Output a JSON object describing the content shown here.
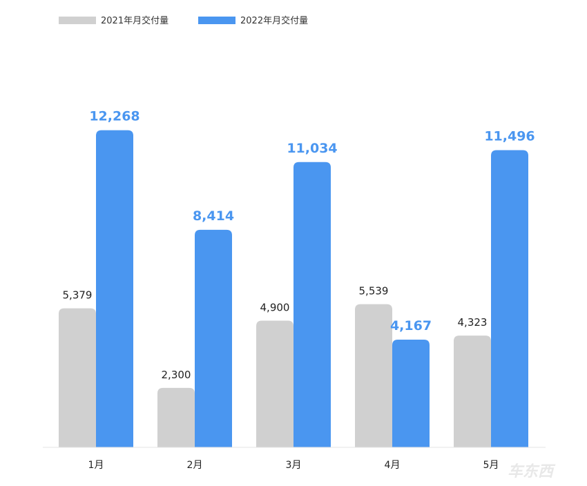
{
  "chart_data": {
    "type": "bar",
    "title": "",
    "xlabel": "",
    "ylabel": "",
    "categories": [
      "1月",
      "2月",
      "3月",
      "4月",
      "5月"
    ],
    "series": [
      {
        "name": "2021年月交付量",
        "values": [
          5379,
          2300,
          4900,
          5539,
          4323
        ],
        "labels": [
          "5,379",
          "2,300",
          "4,900",
          "5,539",
          "4,323"
        ],
        "color": "#d0d0d0"
      },
      {
        "name": "2022年月交付量",
        "values": [
          12268,
          8414,
          11034,
          4167,
          11496
        ],
        "labels": [
          "12,268",
          "8,414",
          "11,034",
          "4,167",
          "11,496"
        ],
        "color": "#4a96f0"
      }
    ],
    "ylim": [
      0,
      14500
    ],
    "grid": false,
    "legend": "top-left",
    "label_colors": {
      "2022": "#4a96f0"
    }
  },
  "watermark": "车东西"
}
